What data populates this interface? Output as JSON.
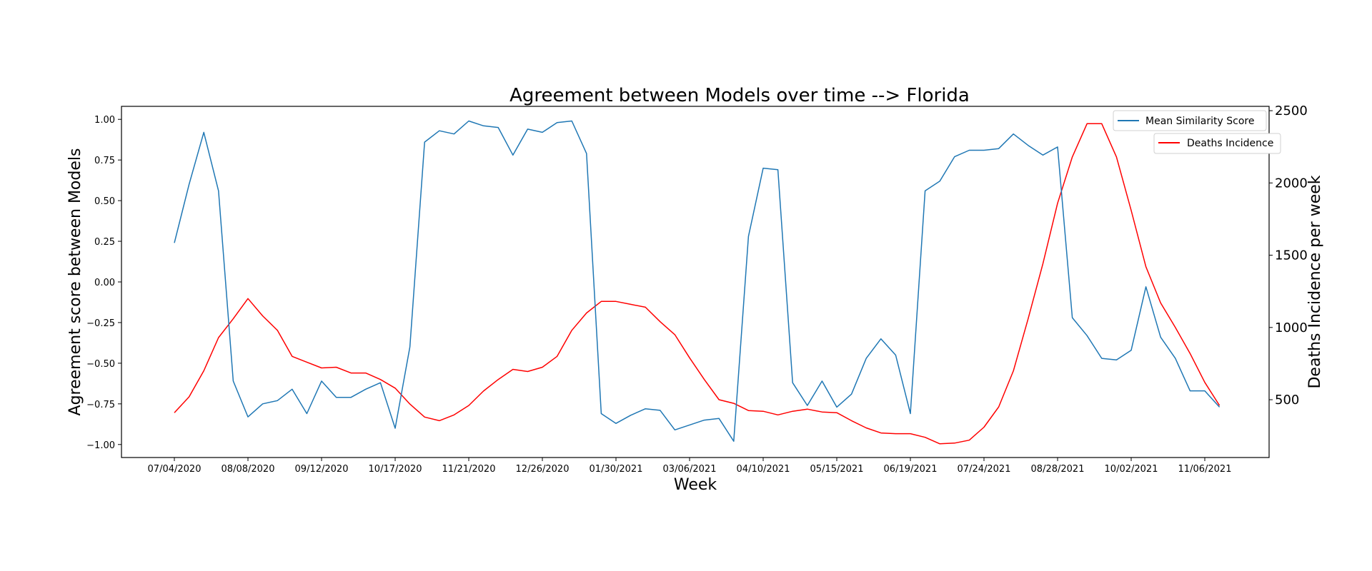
{
  "chart_data": {
    "type": "line",
    "title": "Agreement between Models over time --> Florida",
    "xlabel": "Week",
    "ylabel_left": "Agreement score between Models",
    "ylabel_right": "Deaths Incidence per week",
    "x_tick_labels": [
      "07/04/2020",
      "08/08/2020",
      "09/12/2020",
      "10/17/2020",
      "11/21/2020",
      "12/26/2020",
      "01/30/2021",
      "03/06/2021",
      "04/10/2021",
      "05/15/2021",
      "06/19/2021",
      "07/24/2021",
      "08/28/2021",
      "10/02/2021",
      "11/06/2021"
    ],
    "x_tick_every": 5,
    "ylim_left": [
      -1.08,
      1.08
    ],
    "ylim_right": [
      100,
      2530
    ],
    "yticks_left": [
      "1.00",
      "0.75",
      "0.50",
      "0.25",
      "0.00",
      "−0.25",
      "−0.50",
      "−0.75",
      "−1.00"
    ],
    "yticks_left_values": [
      1.0,
      0.75,
      0.5,
      0.25,
      0.0,
      -0.25,
      -0.5,
      -0.75,
      -1.0
    ],
    "yticks_right": [
      "2500",
      "2000",
      "1500",
      "1000",
      "500"
    ],
    "yticks_right_values": [
      2500,
      2000,
      1500,
      1000,
      500
    ],
    "legend": "top-right",
    "grid": false,
    "series": [
      {
        "name": "Mean Similarity Score",
        "axis": "left",
        "color": "#1f77b4",
        "values": [
          0.24,
          0.6,
          0.92,
          0.56,
          -0.61,
          -0.83,
          -0.75,
          -0.73,
          -0.66,
          -0.81,
          -0.61,
          -0.71,
          -0.71,
          -0.66,
          -0.62,
          -0.9,
          -0.4,
          0.86,
          0.93,
          0.91,
          0.99,
          0.96,
          0.95,
          0.78,
          0.94,
          0.92,
          0.98,
          0.99,
          0.79,
          -0.81,
          -0.87,
          -0.82,
          -0.78,
          -0.79,
          -0.91,
          -0.88,
          -0.85,
          -0.84,
          -0.98,
          0.28,
          0.7,
          0.69,
          -0.62,
          -0.76,
          -0.61,
          -0.77,
          -0.69,
          -0.47,
          -0.35,
          -0.45,
          -0.81,
          0.56,
          0.62,
          0.77,
          0.81,
          0.81,
          0.82,
          0.91,
          0.84,
          0.78,
          0.83,
          -0.22,
          -0.33,
          -0.47,
          -0.48,
          -0.42,
          -0.03,
          -0.34,
          -0.47,
          -0.67,
          -0.67,
          -0.77
        ]
      },
      {
        "name": "Deaths Incidence",
        "axis": "right",
        "color": "#ff0000",
        "values": [
          410,
          520,
          700,
          930,
          1060,
          1200,
          1080,
          980,
          800,
          760,
          720,
          725,
          685,
          685,
          640,
          580,
          470,
          380,
          355,
          395,
          460,
          560,
          640,
          710,
          695,
          725,
          800,
          980,
          1100,
          1180,
          1180,
          1160,
          1140,
          1040,
          950,
          790,
          640,
          500,
          475,
          425,
          420,
          395,
          420,
          435,
          415,
          410,
          355,
          305,
          270,
          265,
          265,
          240,
          195,
          200,
          220,
          310,
          450,
          700,
          1060,
          1440,
          1860,
          2180,
          2410,
          2410,
          2180,
          1810,
          1420,
          1170,
          1000,
          820,
          620,
          460
        ]
      }
    ]
  }
}
